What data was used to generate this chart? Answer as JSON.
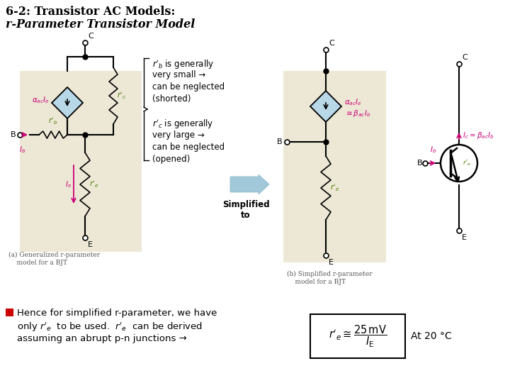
{
  "title_line1": "6-2: Transistor AC Models:",
  "title_line2": "r-Parameter Transistor Model",
  "bg_color": "#ffffff",
  "tan_bg_color": "#ede8d5",
  "light_blue_color": "#b8d8e8",
  "arrow_color": "#cc0077",
  "green_label_color": "#4a7a00",
  "black": "#000000",
  "dark_gray": "#404040",
  "simplified_arrow_color": "#a0c8d8",
  "at_20c": "At 20 °C",
  "caption_a": "(a) Generalized r-parameter\n   model for a BJT",
  "caption_b": "(b) Simplified r-parameter\n    model for a BJT"
}
